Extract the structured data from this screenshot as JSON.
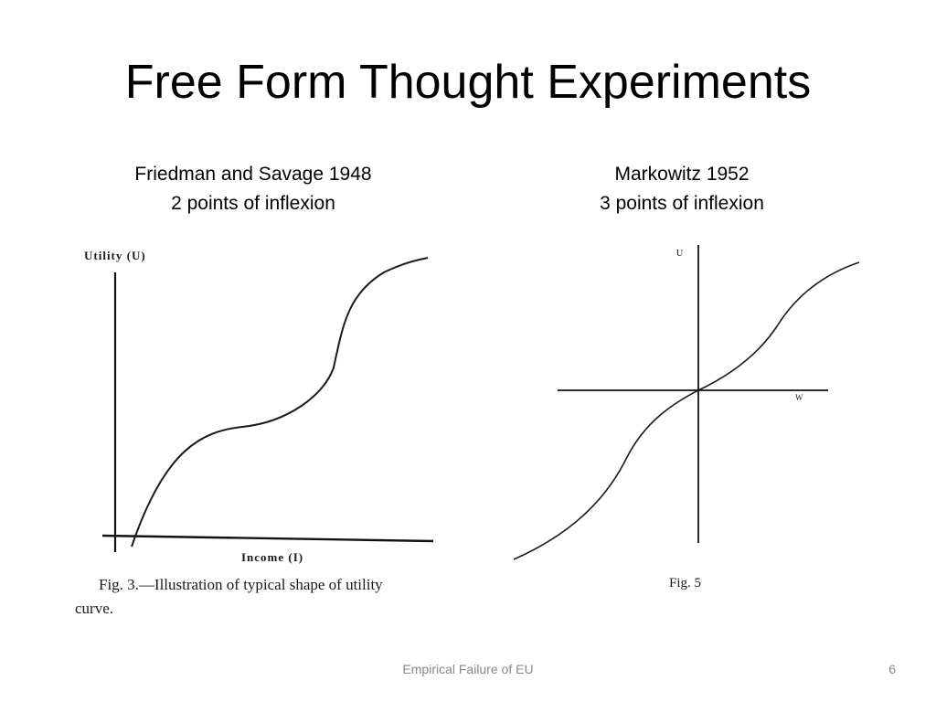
{
  "slide": {
    "title": "Free Form Thought Experiments",
    "footer": "Empirical Failure of EU",
    "page_number": "6"
  },
  "left_panel": {
    "caption_line1": "Friedman and Savage 1948",
    "caption_line2": "2 points of inflexion",
    "figure": {
      "y_axis_label": "Utility (U)",
      "x_axis_label": "Income (I)",
      "caption": "Fig. 3.—Illustration of typical shape of utility",
      "caption_cont": "curve."
    }
  },
  "right_panel": {
    "caption_line1": "Markowitz 1952",
    "caption_line2": "3 points of inflexion",
    "figure": {
      "y_axis_label": "U",
      "x_axis_label": "W",
      "caption": "Fig. 5"
    }
  }
}
